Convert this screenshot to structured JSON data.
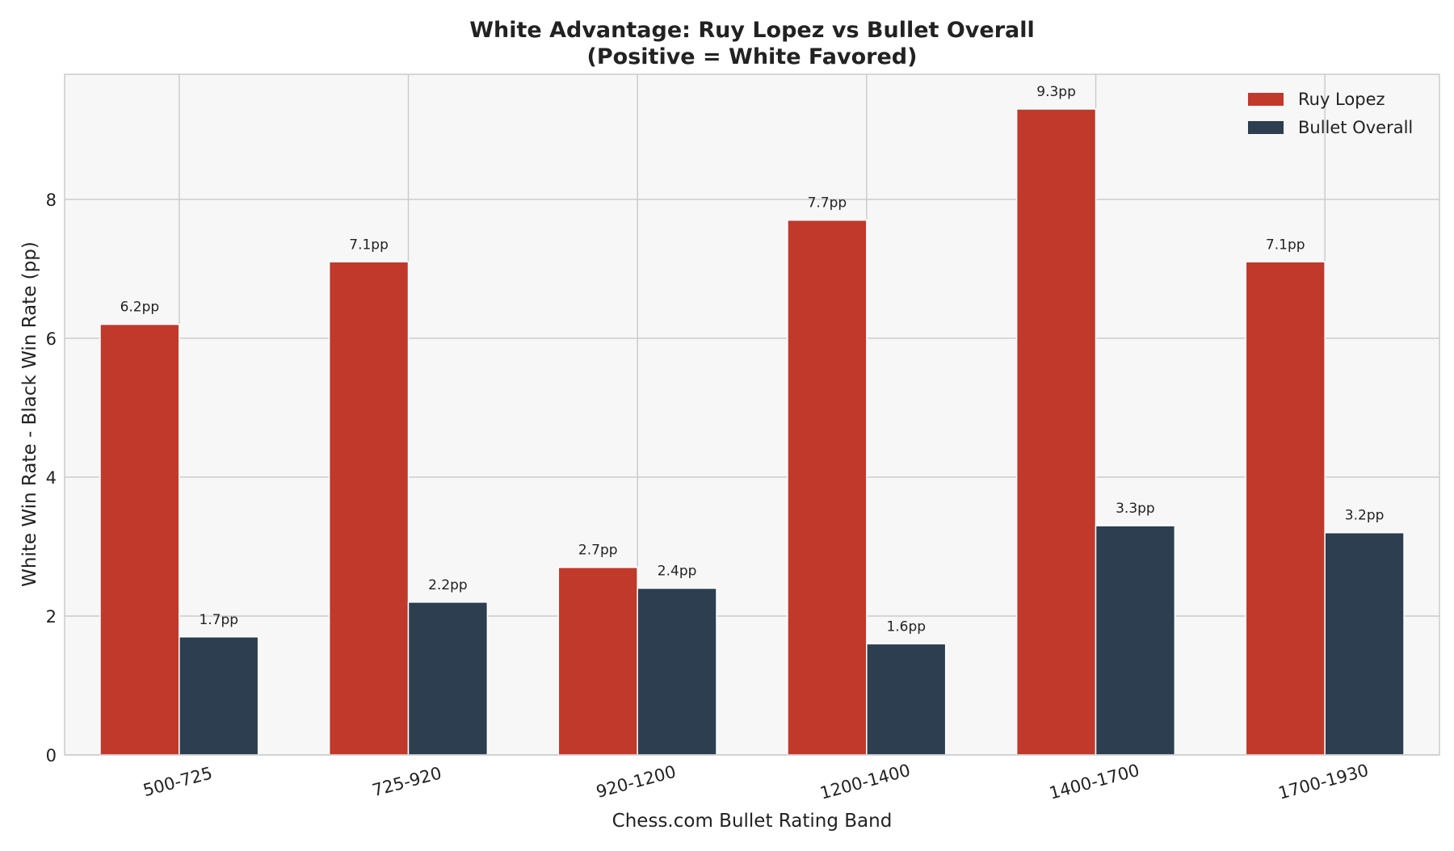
{
  "chart_data": {
    "type": "bar",
    "title_lines": [
      "White Advantage: Ruy Lopez vs Bullet Overall",
      "(Positive = White Favored)"
    ],
    "xlabel": "Chess.com Bullet Rating Band",
    "ylabel": "White Win Rate - Black Win Rate (pp)",
    "categories": [
      "500-725",
      "725-920",
      "920-1200",
      "1200-1400",
      "1400-1700",
      "1700-1930"
    ],
    "series": [
      {
        "name": "Ruy Lopez",
        "color": "#c0392b",
        "values": [
          6.2,
          7.1,
          2.7,
          7.7,
          9.3,
          7.1
        ]
      },
      {
        "name": "Bullet Overall",
        "color": "#2c3e50",
        "values": [
          1.7,
          2.2,
          2.4,
          1.6,
          3.3,
          3.2
        ]
      }
    ],
    "value_label_suffix": "pp",
    "ylim": [
      0,
      9.8
    ],
    "yticks": [
      0,
      2,
      4,
      6,
      8
    ],
    "grid": true,
    "legend_position": "top-right",
    "background_color": "#f7f7f7",
    "grid_color": "#cccccc"
  }
}
